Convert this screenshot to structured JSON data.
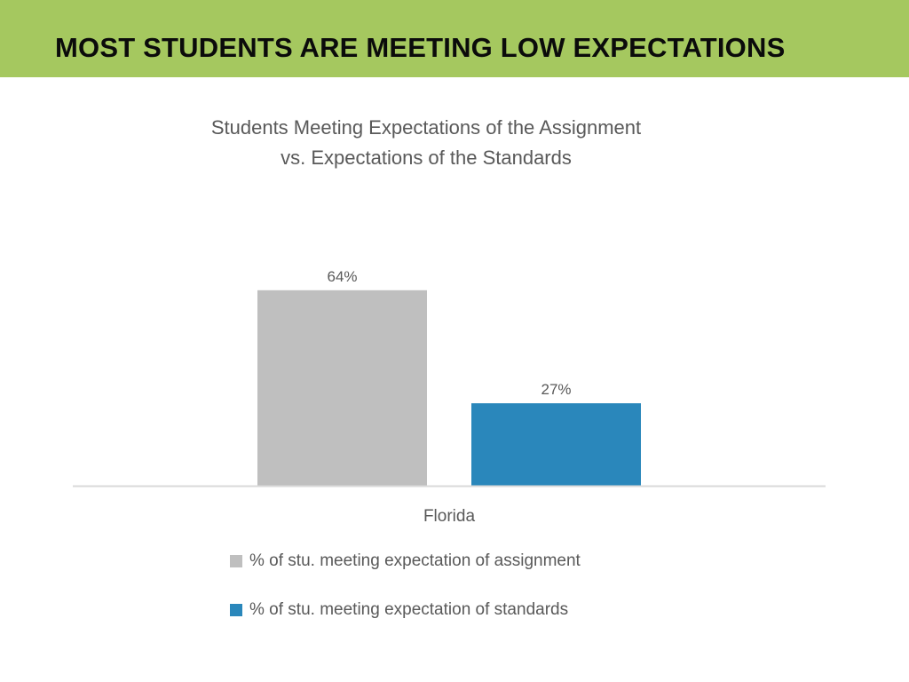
{
  "header": {
    "title": "MOST STUDENTS ARE MEETING LOW EXPECTATIONS",
    "background_color": "#a5c85f"
  },
  "chart_data": {
    "type": "bar",
    "title_lines": [
      "Students Meeting Expectations of the Assignment",
      "vs. Expectations of the Standards"
    ],
    "categories": [
      "Florida"
    ],
    "series": [
      {
        "name": "% of stu. meeting expectation of assignment",
        "values": [
          64
        ],
        "value_labels": [
          "64%"
        ],
        "color": "#bfbfbf"
      },
      {
        "name": "% of stu. meeting expectation of standards",
        "values": [
          27
        ],
        "value_labels": [
          "27%"
        ],
        "color": "#2a87bb"
      }
    ],
    "ylim": [
      0,
      100
    ],
    "grid": false,
    "legend_position": "bottom"
  }
}
